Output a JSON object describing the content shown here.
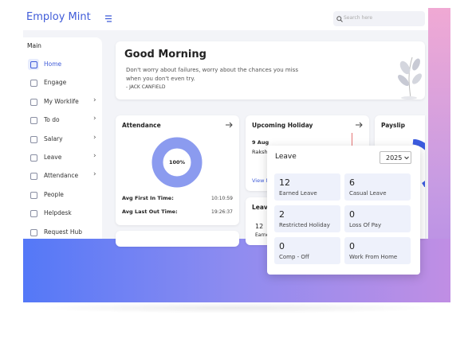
{
  "header": {
    "brand": "Employ Mint",
    "search_placeholder": "Search here"
  },
  "sidebar": {
    "section": "Main",
    "items": [
      {
        "label": "Home"
      },
      {
        "label": "Engage"
      },
      {
        "label": "My Worklife"
      },
      {
        "label": "To do"
      },
      {
        "label": "Salary"
      },
      {
        "label": "Leave"
      },
      {
        "label": "Attendance"
      },
      {
        "label": "People"
      },
      {
        "label": "Helpdesk"
      },
      {
        "label": "Request Hub"
      }
    ]
  },
  "greeting": {
    "title": "Good Morning",
    "quote": "Don't worry about failures, worry about the chances you miss when you don't even try.",
    "author": "- JACK CANFIELD"
  },
  "attendance": {
    "title": "Attendance",
    "percent": "100%",
    "rows": [
      {
        "label": "Avg First In Time:",
        "value": "10:10:59"
      },
      {
        "label": "Avg Last Out Time:",
        "value": "19:26:37"
      }
    ]
  },
  "holiday": {
    "title": "Upcoming Holiday",
    "date": "9 Aug",
    "name": "Raksh",
    "link": "View M"
  },
  "payslip": {
    "title": "Payslip"
  },
  "leave_card": {
    "title": "Leave",
    "count": "12",
    "label": "Earne"
  },
  "leave_popup": {
    "title": "Leave",
    "year": "2025",
    "tiles": [
      {
        "count": "12",
        "label": "Earned Leave"
      },
      {
        "count": "6",
        "label": "Casual Leave"
      },
      {
        "count": "2",
        "label": "Restricted Holiday"
      },
      {
        "count": "0",
        "label": "Loss Of Pay"
      },
      {
        "count": "0",
        "label": "Comp - Off"
      },
      {
        "count": "0",
        "label": "Work From Home"
      }
    ]
  }
}
